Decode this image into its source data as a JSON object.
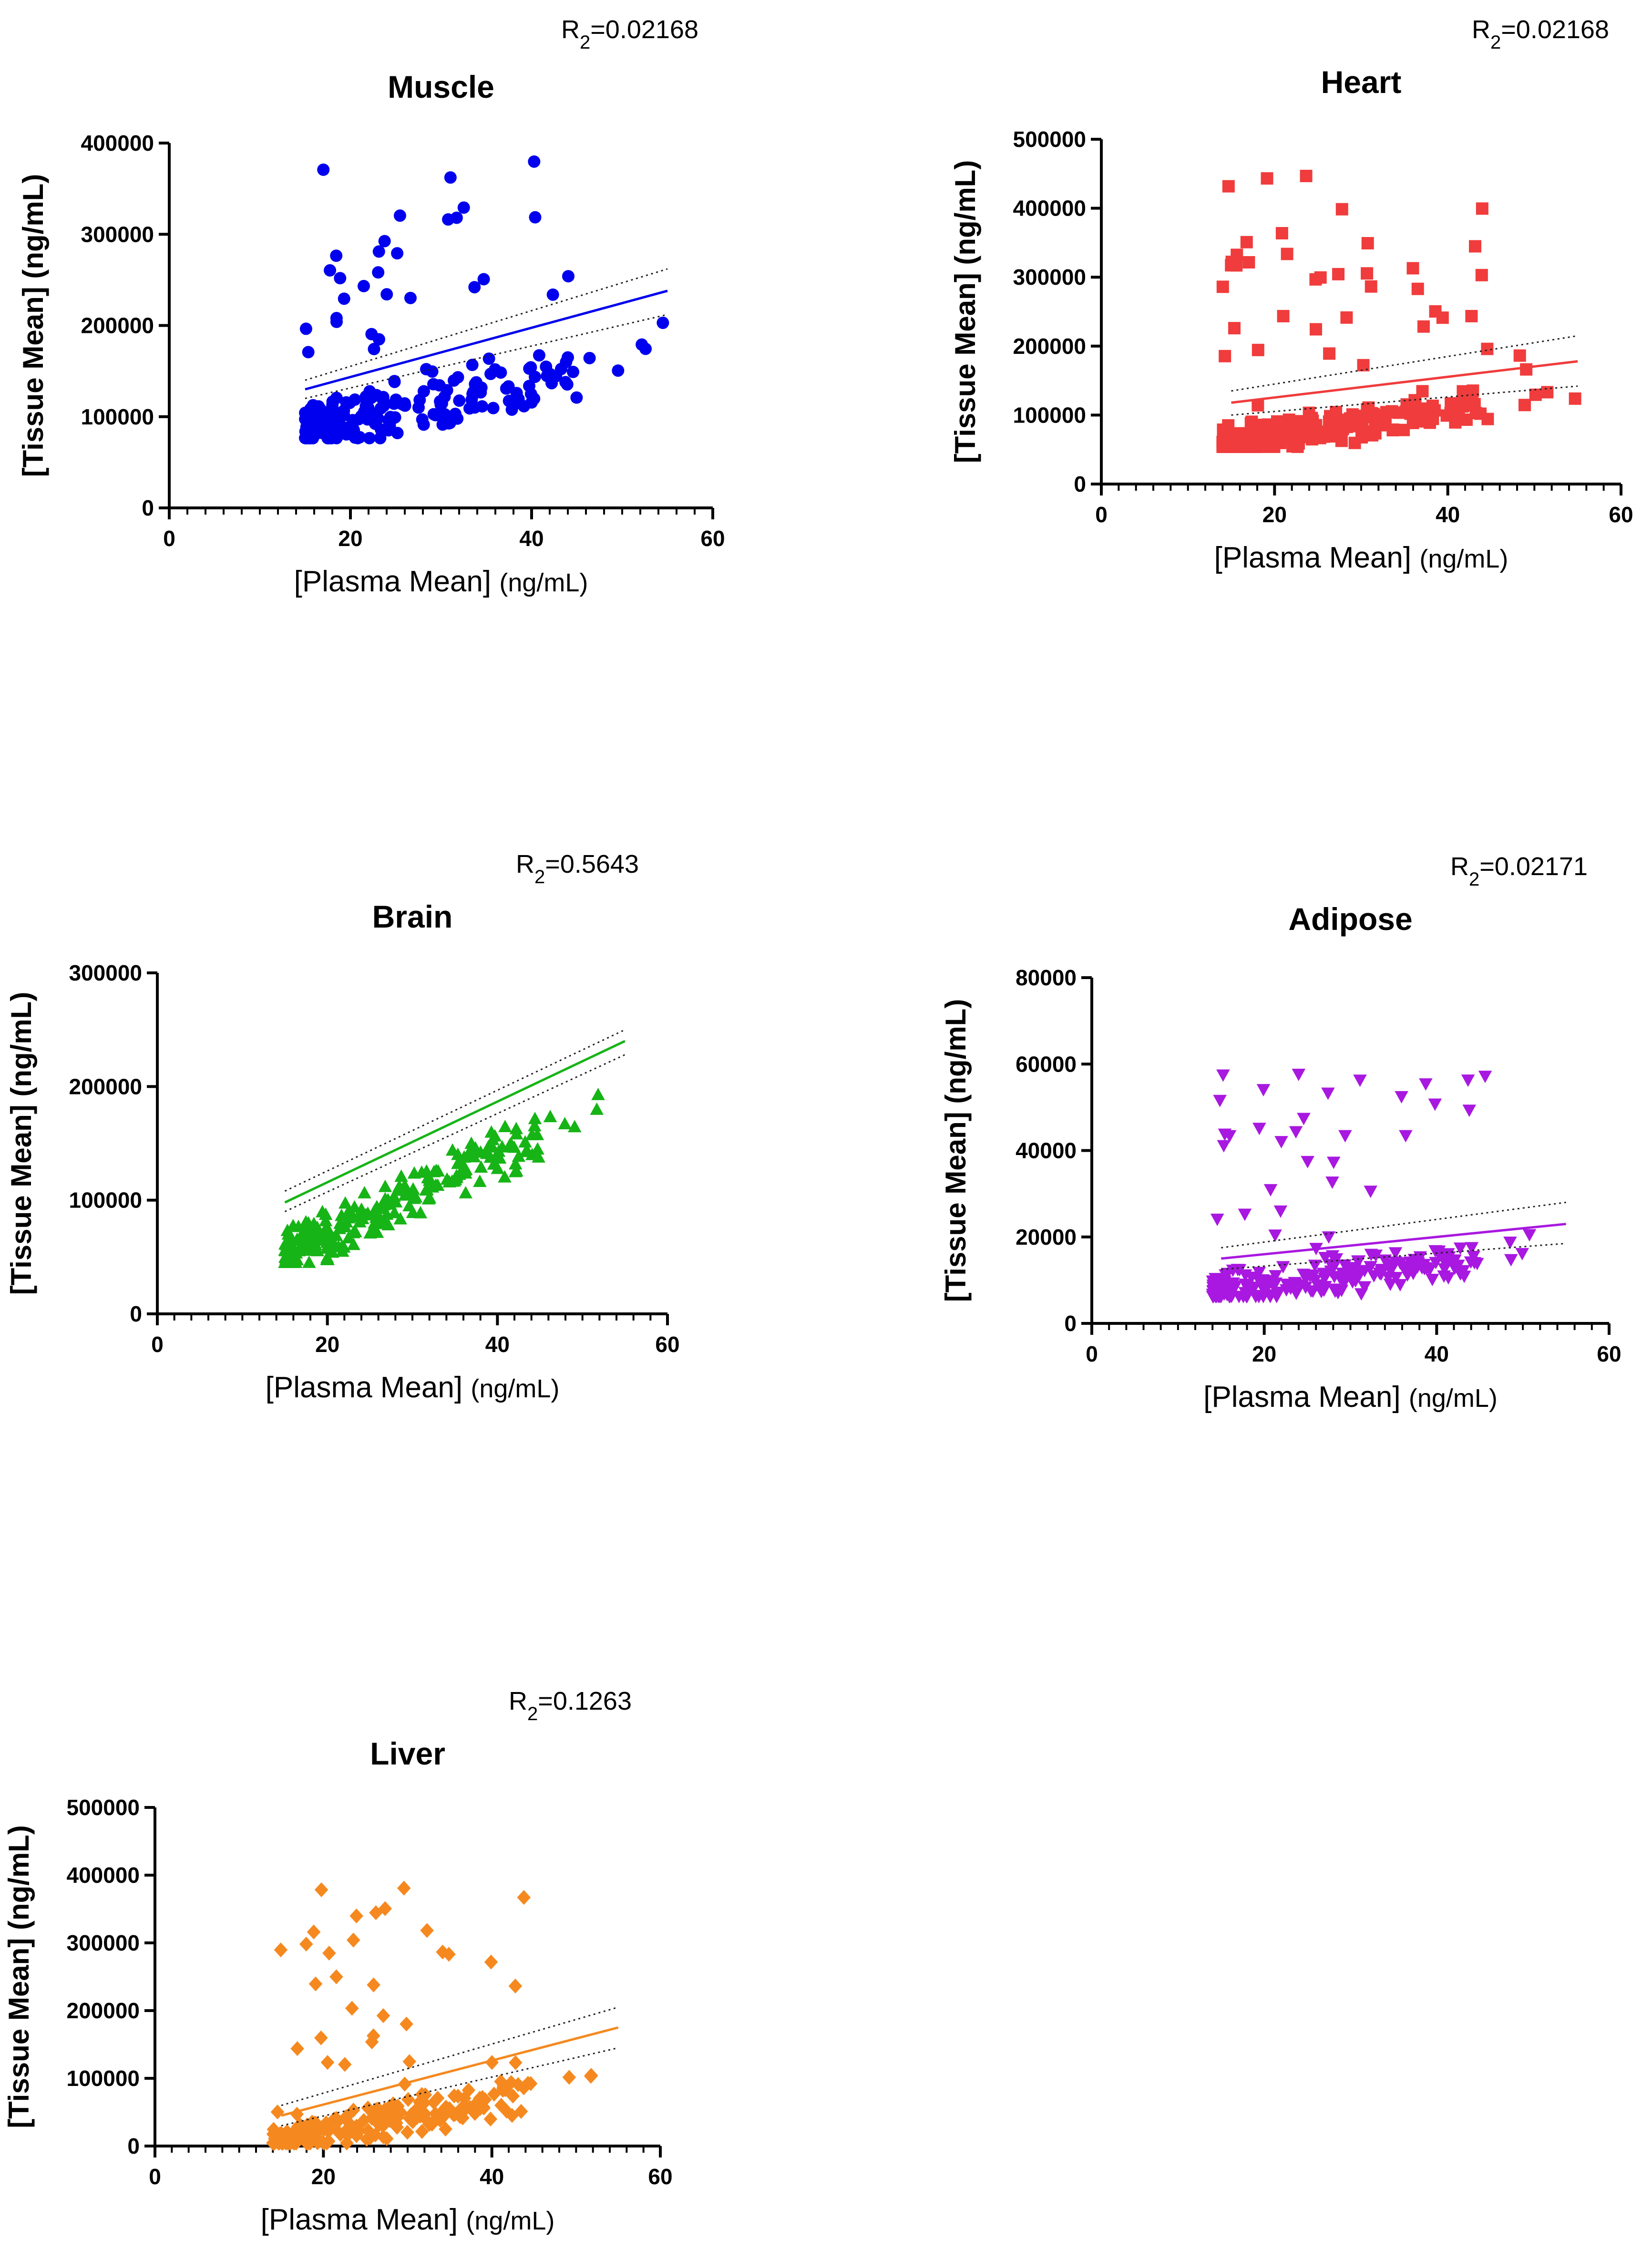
{
  "figure": {
    "y_label": "[Tissue Mean] (ng/mL)",
    "x_label_main": "[Plasma Mean]",
    "x_label_unit": "(ng/mL)",
    "r2_prefix": "R",
    "r2_sub": "2",
    "fit_style": "linear regression with 95% confidence band (dotted)"
  },
  "chart_data": [
    {
      "id": "muscle",
      "type": "scatter",
      "title": "Muscle",
      "r2": "=0.02168",
      "color": "#0000ee",
      "marker": "circle",
      "xlim": [
        0,
        60
      ],
      "ylim": [
        0,
        400000
      ],
      "xticks": [
        "0",
        "20",
        "40",
        "60"
      ],
      "yticks": [
        "0",
        "100000",
        "200000",
        "300000",
        "400000"
      ],
      "fit": {
        "x0": 15,
        "y0": 130000,
        "x1": 55,
        "y1": 238000
      },
      "band_upper": {
        "x0": 15,
        "y0": 140000,
        "x1": 55,
        "y1": 262000
      },
      "band_lower": {
        "x0": 15,
        "y0": 120000,
        "x1": 55,
        "y1": 212000
      },
      "spread": {
        "xmin": 15,
        "xmax": 55,
        "base": 85000,
        "slope": 2100,
        "noise": 60000,
        "outliers": 40,
        "outlier_max": 380000,
        "n": 230
      }
    },
    {
      "id": "heart",
      "type": "scatter",
      "title": "Heart",
      "r2": "=0.02168",
      "color": "#f03c3c",
      "marker": "square",
      "xlim": [
        0,
        60
      ],
      "ylim": [
        0,
        500000
      ],
      "xticks": [
        "0",
        "20",
        "40",
        "60"
      ],
      "yticks": [
        "0",
        "100000",
        "200000",
        "300000",
        "400000",
        "500000"
      ],
      "fit": {
        "x0": 15,
        "y0": 118000,
        "x1": 55,
        "y1": 178000
      },
      "band_upper": {
        "x0": 15,
        "y0": 135000,
        "x1": 55,
        "y1": 215000
      },
      "band_lower": {
        "x0": 15,
        "y0": 100000,
        "x1": 55,
        "y1": 142000
      },
      "spread": {
        "xmin": 14,
        "xmax": 55,
        "base": 60000,
        "slope": 1800,
        "noise": 50000,
        "outliers": 45,
        "outlier_max": 455000,
        "n": 260
      }
    },
    {
      "id": "brain",
      "type": "scatter",
      "title": "Brain",
      "r2": "=0.5643",
      "color": "#16b416",
      "marker": "triangle-up",
      "xlim": [
        0,
        60
      ],
      "ylim": [
        0,
        300000
      ],
      "xticks": [
        "0",
        "20",
        "40",
        "60"
      ],
      "yticks": [
        "0",
        "100000",
        "200000",
        "300000"
      ],
      "fit": {
        "x0": 15,
        "y0": 98000,
        "x1": 55,
        "y1": 240000
      },
      "band_upper": {
        "x0": 15,
        "y0": 108000,
        "x1": 55,
        "y1": 250000
      },
      "band_lower": {
        "x0": 15,
        "y0": 90000,
        "x1": 55,
        "y1": 228000
      },
      "spread": {
        "xmin": 15,
        "xmax": 55,
        "base": 50000,
        "slope": 3600,
        "noise": 45000,
        "outliers": 0,
        "outlier_max": 245000,
        "n": 250
      }
    },
    {
      "id": "adipose",
      "type": "scatter",
      "title": "Adipose",
      "r2": "=0.02171",
      "color": "#a818e0",
      "marker": "triangle-down",
      "xlim": [
        0,
        60
      ],
      "ylim": [
        0,
        80000
      ],
      "xticks": [
        "0",
        "20",
        "40",
        "60"
      ],
      "yticks": [
        "0",
        "20000",
        "40000",
        "60000",
        "80000"
      ],
      "fit": {
        "x0": 15,
        "y0": 15000,
        "x1": 55,
        "y1": 23000
      },
      "band_upper": {
        "x0": 15,
        "y0": 17500,
        "x1": 55,
        "y1": 28000
      },
      "band_lower": {
        "x0": 15,
        "y0": 12500,
        "x1": 55,
        "y1": 18500
      },
      "spread": {
        "xmin": 14,
        "xmax": 55,
        "base": 7000,
        "slope": 260,
        "noise": 9000,
        "outliers": 40,
        "outlier_max": 58000,
        "n": 250
      }
    },
    {
      "id": "liver",
      "type": "scatter",
      "title": "Liver",
      "r2": "=0.1263",
      "color": "#f5891f",
      "marker": "diamond",
      "xlim": [
        0,
        60
      ],
      "ylim": [
        0,
        500000
      ],
      "xticks": [
        "0",
        "20",
        "40",
        "60"
      ],
      "yticks": [
        "0",
        "100000",
        "200000",
        "300000",
        "400000",
        "500000"
      ],
      "fit": {
        "x0": 15,
        "y0": 45000,
        "x1": 55,
        "y1": 175000
      },
      "band_upper": {
        "x0": 15,
        "y0": 60000,
        "x1": 55,
        "y1": 205000
      },
      "band_lower": {
        "x0": 15,
        "y0": 30000,
        "x1": 55,
        "y1": 145000
      },
      "spread": {
        "xmin": 14,
        "xmax": 55,
        "base": 5000,
        "slope": 2400,
        "noise": 55000,
        "outliers": 40,
        "outlier_max": 385000,
        "n": 250
      }
    }
  ]
}
